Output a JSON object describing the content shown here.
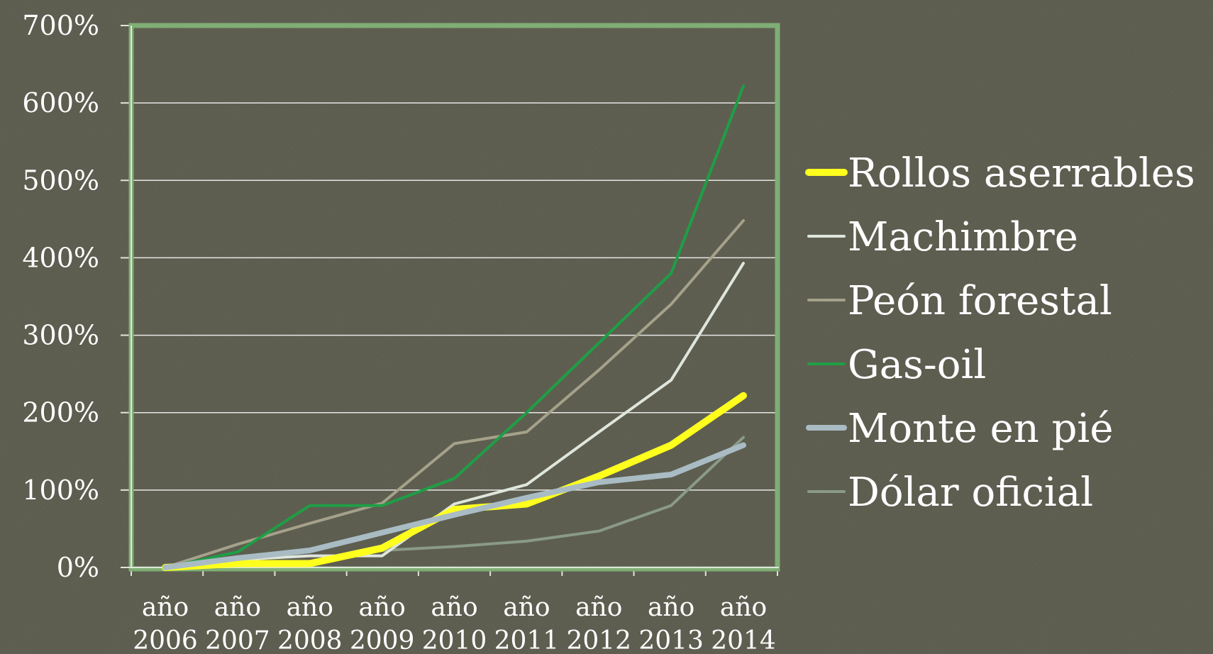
{
  "chart_data": {
    "type": "line",
    "y_tick_labels": [
      "0%",
      "100%",
      "200%",
      "300%",
      "400%",
      "500%",
      "600%",
      "700%"
    ],
    "ylim": [
      0,
      700
    ],
    "categories": [
      [
        "año",
        "2006"
      ],
      [
        "año",
        "2007"
      ],
      [
        "año",
        "2008"
      ],
      [
        "año",
        "2009"
      ],
      [
        "año",
        "2010"
      ],
      [
        "año",
        "2011"
      ],
      [
        "año",
        "2012"
      ],
      [
        "año",
        "2013"
      ],
      [
        "año",
        "2014"
      ]
    ],
    "grid": true,
    "legend_position": "right",
    "series": [
      {
        "name": "Rollos aserrables",
        "color": "#ffff1e",
        "width": 10,
        "values": [
          0,
          5,
          5,
          25,
          75,
          82,
          118,
          158,
          222
        ]
      },
      {
        "name": "Machimbre",
        "color": "#dfe6dc",
        "width": 4,
        "values": [
          0,
          10,
          15,
          15,
          82,
          107,
          175,
          242,
          393
        ]
      },
      {
        "name": "Peón forestal",
        "color": "#a5a18a",
        "width": 4,
        "values": [
          0,
          30,
          57,
          83,
          160,
          175,
          255,
          340,
          448
        ]
      },
      {
        "name": "Gas-oil",
        "color": "#1f9e45",
        "width": 4,
        "values": [
          0,
          20,
          80,
          80,
          115,
          200,
          290,
          380,
          622
        ]
      },
      {
        "name": "Monte en pié",
        "color": "#a9bcc4",
        "width": 8,
        "values": [
          0,
          12,
          22,
          45,
          68,
          90,
          110,
          120,
          158
        ]
      },
      {
        "name": "Dólar oficial",
        "color": "#8a9a88",
        "width": 4,
        "values": [
          0,
          3,
          5,
          22,
          27,
          34,
          47,
          80,
          168
        ]
      }
    ]
  }
}
